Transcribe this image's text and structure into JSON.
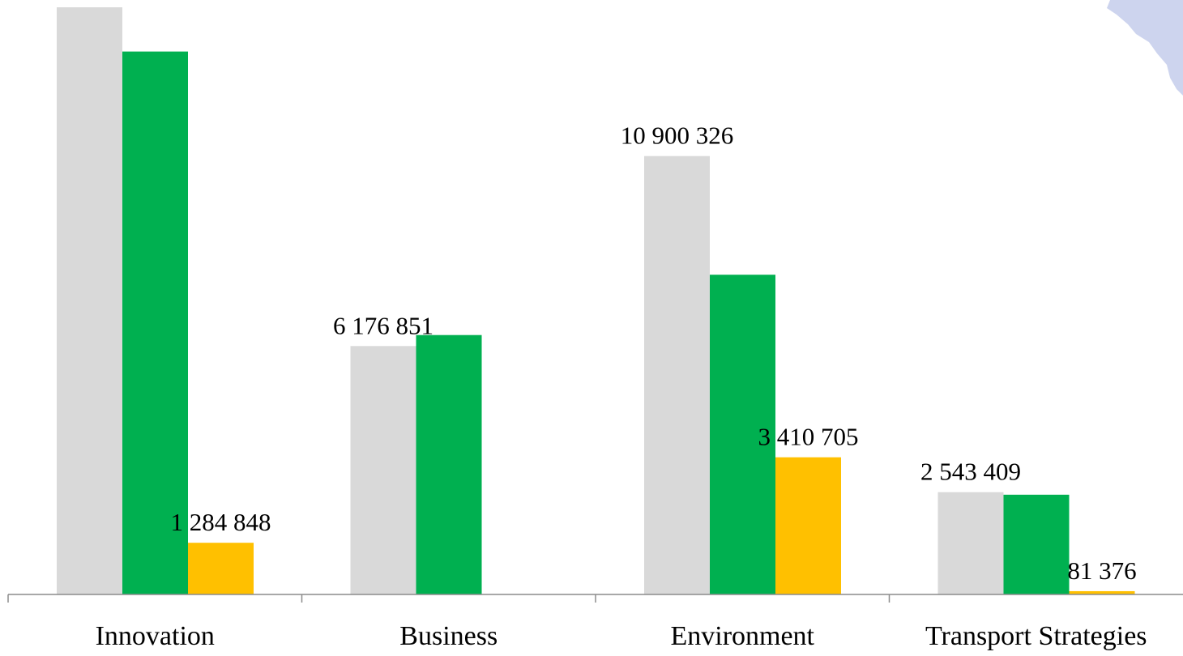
{
  "chart_data": {
    "type": "bar",
    "title": "",
    "xlabel": "",
    "ylabel": "",
    "categories": [
      "Innovation",
      "Business",
      "Environment",
      "Transport Strategies"
    ],
    "series": [
      {
        "values": [
          14600000,
          6176851,
          10900326,
          2543409
        ],
        "color": "#d9d9d9"
      },
      {
        "values": [
          13500000,
          6450000,
          7950000,
          2480000
        ],
        "color": "#00b050"
      },
      {
        "values": [
          1284848,
          0,
          3410705,
          81376
        ],
        "color": "#ffc000"
      }
    ],
    "data_labels": [
      {
        "series": 0,
        "category": 2,
        "text": "10 900 326"
      },
      {
        "series": 0,
        "category": 1,
        "text": "6 176 851"
      },
      {
        "series": 0,
        "category": 3,
        "text": "2 543 409"
      },
      {
        "series": 2,
        "category": 0,
        "text": "1 284 848"
      },
      {
        "series": 2,
        "category": 2,
        "text": "3 410 705"
      },
      {
        "series": 2,
        "category": 3,
        "text": "81 376"
      }
    ],
    "ylim": [
      0,
      14600000
    ],
    "grid": false,
    "legend": "none",
    "decoration": "map-fragment"
  }
}
